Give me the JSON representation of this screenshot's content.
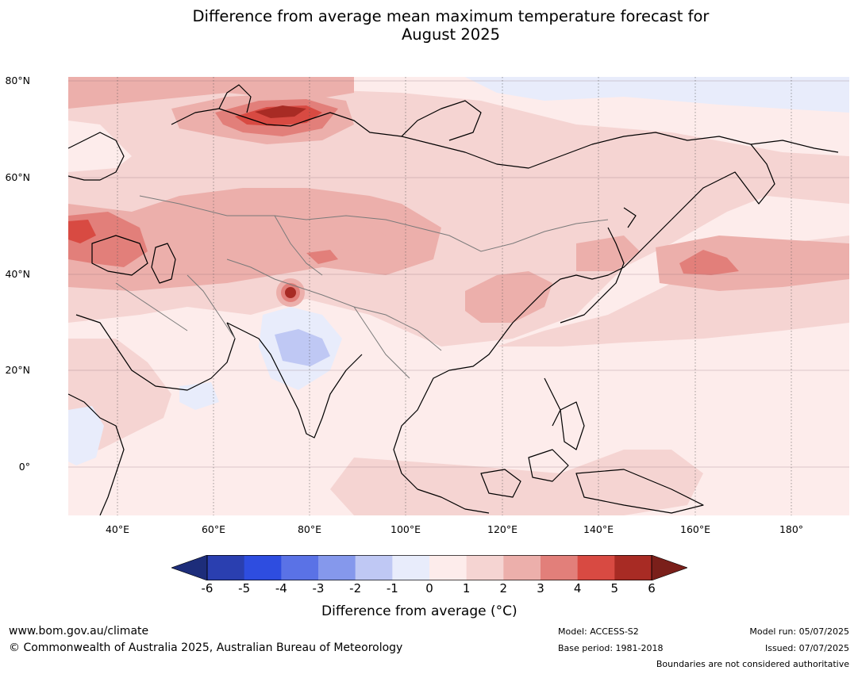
{
  "title": {
    "line1": "Difference from average mean maximum temperature forecast for",
    "line2": "August 2025"
  },
  "map": {
    "lat_labels": [
      "80°N",
      "60°N",
      "40°N",
      "20°N",
      "0°"
    ],
    "lon_labels": [
      "40°E",
      "60°E",
      "80°E",
      "100°E",
      "120°E",
      "140°E",
      "160°E",
      "180°"
    ],
    "region": "Asia"
  },
  "colorbar": {
    "ticks": [
      "-6",
      "-5",
      "-4",
      "-3",
      "-2",
      "-1",
      "0",
      "1",
      "2",
      "3",
      "4",
      "5",
      "6"
    ],
    "label": "Difference from average (°C)",
    "colors": [
      "#27358f",
      "#2a3fb0",
      "#2e4de0",
      "#5a72e6",
      "#8598ec",
      "#bfc8f4",
      "#e8ecfb",
      "#fdeceb",
      "#f5d4d2",
      "#ecafab",
      "#e27f7a",
      "#d84a42",
      "#a82b24"
    ],
    "extend_low_color": "#1d2d7a",
    "extend_high_color": "#7a1f1a"
  },
  "footer": {
    "url": "www.bom.gov.au/climate",
    "copyright": "© Commonwealth of Australia 2025, Australian Bureau of Meteorology",
    "model": "Model: ACCESS-S2",
    "base_period": "Base period: 1981-2018",
    "model_run": "Model run: 05/07/2025",
    "issued": "Issued: 07/07/2025",
    "disclaimer": "Boundaries are not considered authoritative"
  }
}
